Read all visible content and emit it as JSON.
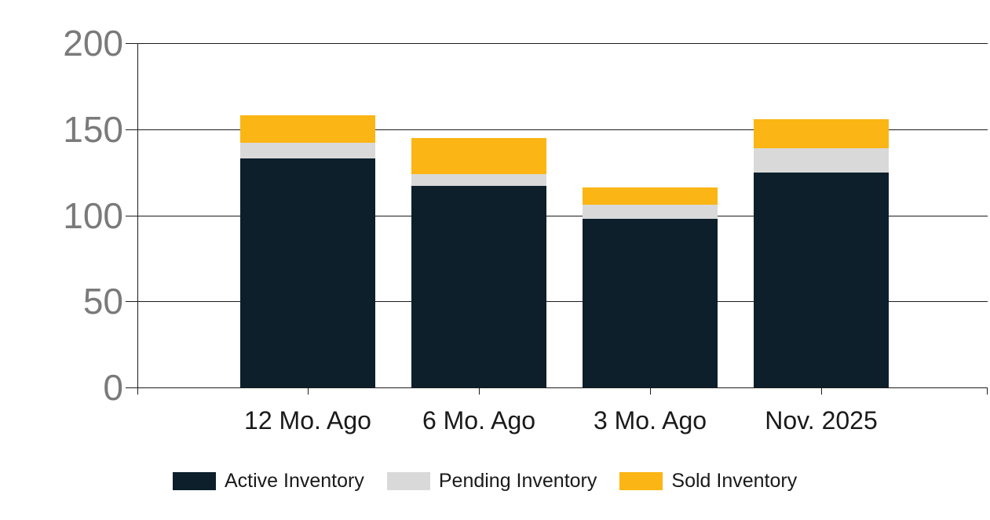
{
  "chart_data": {
    "type": "bar",
    "stacked": true,
    "categories": [
      "12 Mo. Ago",
      "6 Mo. Ago",
      "3 Mo. Ago",
      "Nov. 2025"
    ],
    "series": [
      {
        "name": "Active Inventory",
        "color": "#0c1f2b",
        "values": [
          133,
          117,
          98,
          125
        ]
      },
      {
        "name": "Pending Inventory",
        "color": "#d9d9d9",
        "values": [
          9,
          7,
          8,
          14
        ]
      },
      {
        "name": "Sold Inventory",
        "color": "#fbb514",
        "values": [
          16,
          21,
          10,
          17
        ]
      }
    ],
    "totals": [
      158,
      145,
      116,
      156
    ],
    "title": "",
    "xlabel": "",
    "ylabel": "",
    "ylim": [
      0,
      200
    ],
    "yticks": [
      0,
      50,
      100,
      150,
      200
    ],
    "grid": true,
    "legend_position": "bottom"
  },
  "colors": {
    "background": "#ffffff",
    "gridline": "#1c1c1c",
    "y_tick_label": "#7a7a7a",
    "x_tick_label": "#1a1a1a",
    "active": "#0c1f2b",
    "pending": "#d9d9d9",
    "sold": "#fbb514"
  }
}
